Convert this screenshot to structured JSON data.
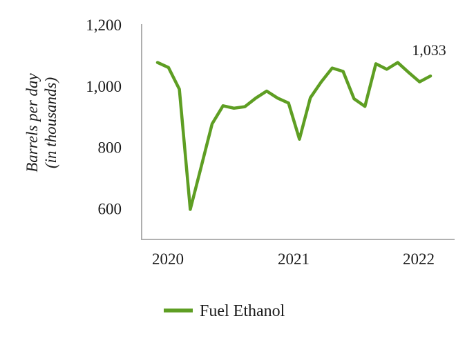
{
  "chart_data": {
    "type": "line",
    "title": "",
    "x": [
      "Jan 2020",
      "Feb 2020",
      "Mar 2020",
      "Apr 2020",
      "May 2020",
      "Jun 2020",
      "Jul 2020",
      "Aug 2020",
      "Sep 2020",
      "Oct 2020",
      "Nov 2020",
      "Dec 2020",
      "Jan 2021",
      "Feb 2021",
      "Mar 2021",
      "Apr 2021",
      "May 2021",
      "Jun 2021",
      "Jul 2021",
      "Aug 2021",
      "Sep 2021",
      "Oct 2021",
      "Nov 2021",
      "Dec 2021",
      "Jan 2022",
      "Feb 2022"
    ],
    "series": [
      {
        "name": "Fuel Ethanol",
        "color": "#5e9e23",
        "values": [
          1077,
          1061,
          990,
          598,
          737,
          877,
          936,
          928,
          933,
          961,
          984,
          961,
          945,
          827,
          962,
          1014,
          1059,
          1048,
          959,
          934,
          1073,
          1055,
          1077,
          1045,
          1014,
          1033
        ]
      }
    ],
    "xlabel": "",
    "ylabel": "Barrels per day (in thousands)",
    "ylabel_lines": [
      "Barrels per day",
      "(in thousands)"
    ],
    "x_tick_labels": [
      "2020",
      "2021",
      "2022"
    ],
    "y_tick_labels": [
      "600",
      "800",
      "1,000",
      "1,200"
    ],
    "y_tick_values": [
      600,
      800,
      1000,
      1200
    ],
    "ylim": [
      500,
      1200
    ],
    "grid": false,
    "legend_position": "bottom",
    "last_point_label": "1,033",
    "line_color": "#5e9e23",
    "axis_color": "#a6a6a6",
    "text_color": "#1a1a1a"
  }
}
